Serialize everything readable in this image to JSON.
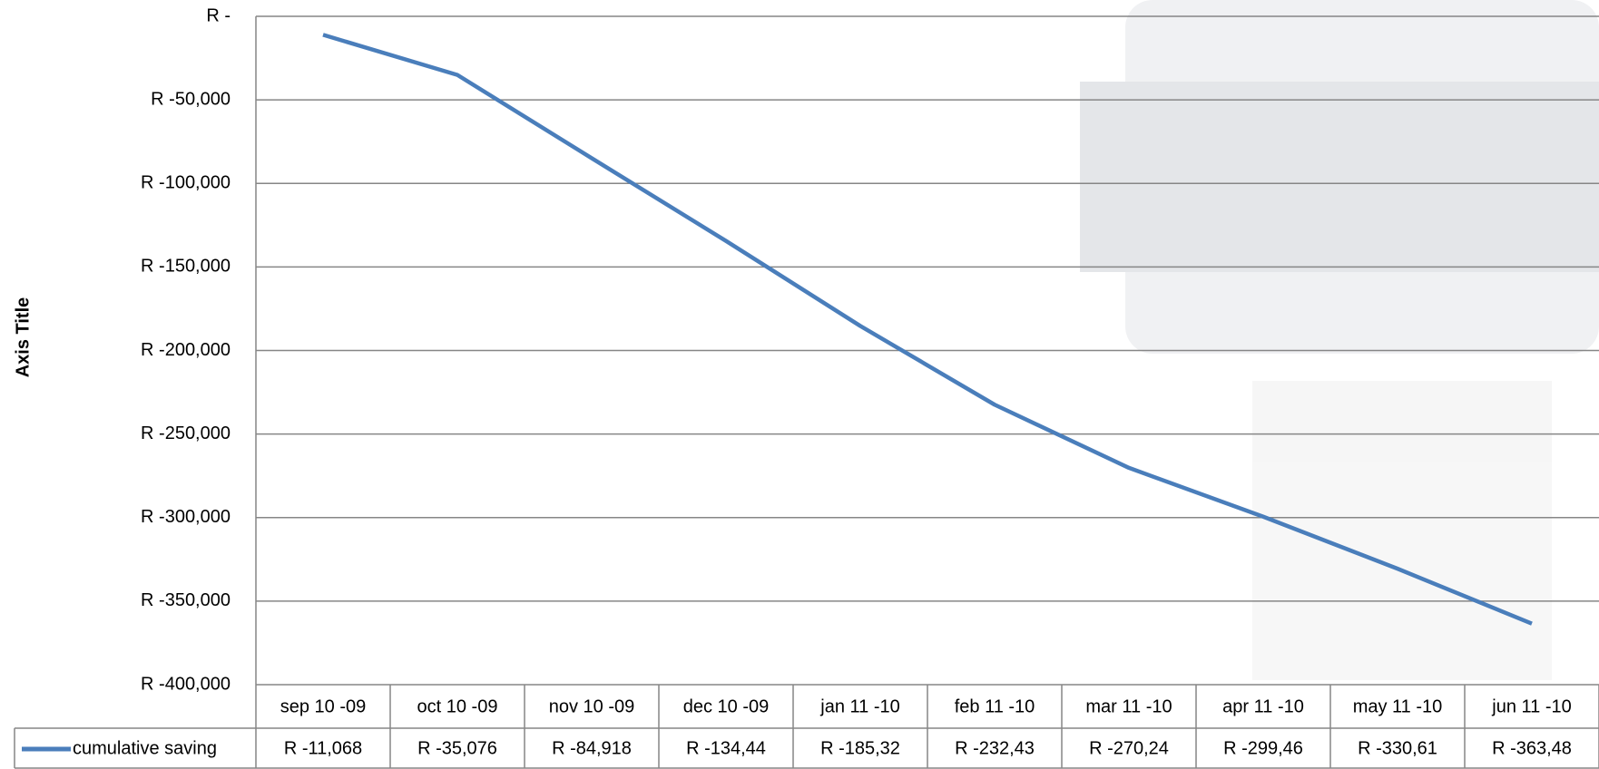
{
  "chart_data": {
    "type": "line",
    "y_axis_title": "Axis Title",
    "categories": [
      "sep 10 -09",
      "oct 10 -09",
      "nov 10 -09",
      "dec 10 -09",
      "jan 11 -10",
      "feb 11 -10",
      "mar 11 -10",
      "apr 11 -10",
      "may 11 -10",
      "jun 11 -10"
    ],
    "series": [
      {
        "name": "cumulative saving",
        "color": "#4a7ebb",
        "values": [
          -11068,
          -35076,
          -84918,
          -134440,
          -185320,
          -232430,
          -270240,
          -299460,
          -330610,
          -363480
        ],
        "value_labels": [
          "R -11,068",
          "R -35,076",
          "R -84,918",
          "R -134,44",
          "R -185,32",
          "R -232,43",
          "R -270,24",
          "R -299,46",
          "R -330,61",
          "R -363,48"
        ]
      }
    ],
    "ylim": [
      -400000,
      0
    ],
    "yticks": [
      {
        "value": 0,
        "label": "R -"
      },
      {
        "value": -50000,
        "label": "R -50,000"
      },
      {
        "value": -100000,
        "label": "R -100,000"
      },
      {
        "value": -150000,
        "label": "R -150,000"
      },
      {
        "value": -200000,
        "label": "R -200,000"
      },
      {
        "value": -250000,
        "label": "R -250,000"
      },
      {
        "value": -300000,
        "label": "R -300,000"
      },
      {
        "value": -350000,
        "label": "R -350,000"
      },
      {
        "value": -400000,
        "label": "R -400,000"
      }
    ],
    "grid": true
  }
}
